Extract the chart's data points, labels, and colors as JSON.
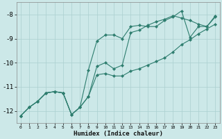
{
  "x": [
    0,
    1,
    2,
    3,
    4,
    5,
    6,
    7,
    8,
    9,
    10,
    11,
    12,
    13,
    14,
    15,
    16,
    17,
    18,
    19,
    20,
    21,
    22,
    23
  ],
  "line1": [
    -12.2,
    -11.85,
    -11.6,
    -11.25,
    -11.2,
    -11.25,
    -12.15,
    -11.85,
    -10.3,
    -9.1,
    -8.85,
    -8.85,
    -9.0,
    -8.5,
    -8.45,
    -8.5,
    -8.5,
    -8.25,
    -8.1,
    -7.85,
    -8.95,
    -8.5,
    -8.5,
    -8.1
  ],
  "line2": [
    -12.2,
    -11.85,
    -11.6,
    -11.25,
    -11.2,
    -11.25,
    -12.15,
    -11.85,
    -11.4,
    -10.15,
    -10.0,
    -10.25,
    -10.1,
    -8.75,
    -8.65,
    -8.45,
    -8.3,
    -8.2,
    -8.05,
    -8.15,
    -8.25,
    -8.4,
    -8.5,
    -8.05
  ],
  "line3": [
    -12.2,
    -11.85,
    -11.6,
    -11.25,
    -11.2,
    -11.25,
    -12.15,
    -11.85,
    -11.4,
    -10.5,
    -10.45,
    -10.55,
    -10.55,
    -10.35,
    -10.25,
    -10.1,
    -9.95,
    -9.8,
    -9.55,
    -9.25,
    -9.05,
    -8.8,
    -8.6,
    -8.4
  ],
  "xlabel": "Humidex (Indice chaleur)",
  "line_color": "#2d7d6e",
  "bg_color": "#cce8e8",
  "grid_color": "#aacfcf",
  "xlim": [
    0,
    23
  ],
  "ylim": [
    -12.5,
    -7.5
  ],
  "yticks": [
    -12,
    -11,
    -10,
    -9,
    -8
  ],
  "xticks": [
    0,
    1,
    2,
    3,
    4,
    5,
    6,
    7,
    8,
    9,
    10,
    11,
    12,
    13,
    14,
    15,
    16,
    17,
    18,
    19,
    20,
    21,
    22,
    23
  ]
}
